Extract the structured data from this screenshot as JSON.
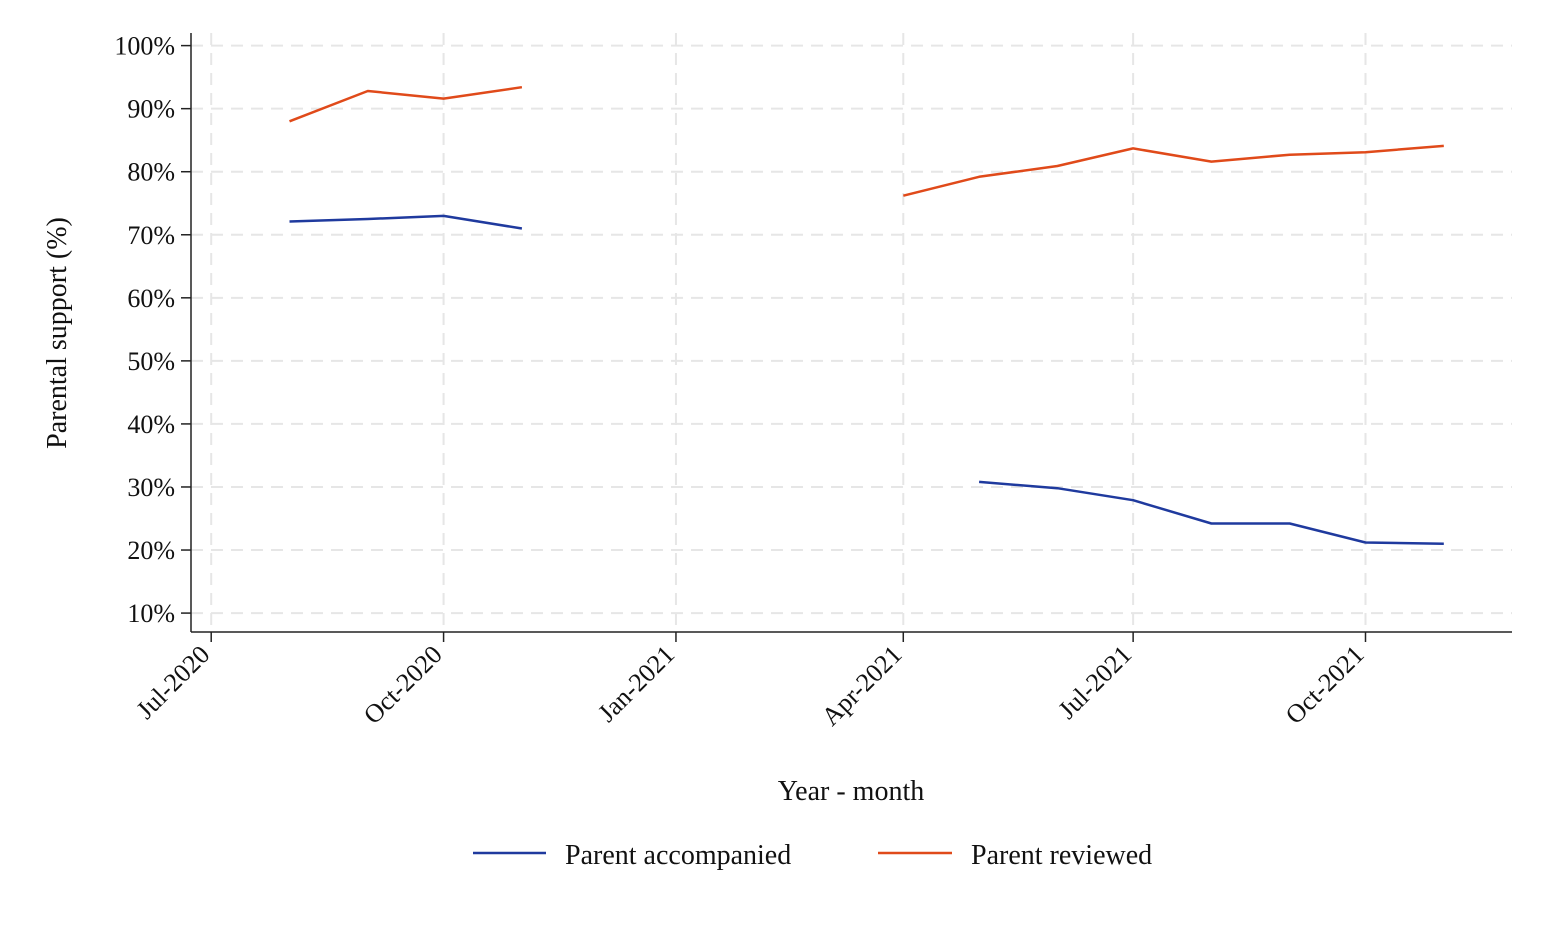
{
  "chart_data": {
    "type": "line",
    "title": "",
    "xlabel": "Year - month",
    "ylabel": "Parental support (%)",
    "x_axis": {
      "ticks": [
        "2020-07",
        "2020-10",
        "2021-01",
        "2021-04",
        "2021-07",
        "2021-10"
      ],
      "tick_labels": [
        "Jul-2020",
        "Oct-2020",
        "Jan-2021",
        "Apr-2021",
        "Jul-2021",
        "Oct-2021"
      ],
      "range": [
        "2020-06-23",
        "2021-11-28"
      ]
    },
    "y_axis": {
      "ticks": [
        10,
        20,
        30,
        40,
        50,
        60,
        70,
        80,
        90,
        100
      ],
      "tick_labels": [
        "10%",
        "20%",
        "30%",
        "40%",
        "50%",
        "60%",
        "70%",
        "80%",
        "90%",
        "100%"
      ],
      "range": [
        7,
        102
      ]
    },
    "grid": true,
    "legend_position": "bottom",
    "series": [
      {
        "name": "Parent accompanied",
        "color": "#1f3a9e",
        "segments": [
          [
            {
              "x": "2020-08",
              "y": 72.1
            },
            {
              "x": "2020-09",
              "y": 72.5
            },
            {
              "x": "2020-10",
              "y": 73.0
            },
            {
              "x": "2020-11",
              "y": 71.0
            }
          ],
          [
            {
              "x": "2021-05",
              "y": 30.8
            },
            {
              "x": "2021-06",
              "y": 29.8
            },
            {
              "x": "2021-07",
              "y": 27.9
            },
            {
              "x": "2021-08",
              "y": 24.2
            },
            {
              "x": "2021-09",
              "y": 24.2
            },
            {
              "x": "2021-10",
              "y": 21.2
            },
            {
              "x": "2021-11",
              "y": 21.0
            }
          ]
        ]
      },
      {
        "name": "Parent reviewed",
        "color": "#e04a1a",
        "segments": [
          [
            {
              "x": "2020-08",
              "y": 88.0
            },
            {
              "x": "2020-09",
              "y": 92.8
            },
            {
              "x": "2020-10",
              "y": 91.6
            },
            {
              "x": "2020-11",
              "y": 93.4
            }
          ],
          [
            {
              "x": "2021-04",
              "y": 76.2
            },
            {
              "x": "2021-05",
              "y": 79.2
            },
            {
              "x": "2021-06",
              "y": 80.9
            },
            {
              "x": "2021-07",
              "y": 83.7
            },
            {
              "x": "2021-08",
              "y": 81.6
            },
            {
              "x": "2021-09",
              "y": 82.7
            },
            {
              "x": "2021-10",
              "y": 83.1
            },
            {
              "x": "2021-11",
              "y": 84.1
            }
          ]
        ]
      }
    ]
  }
}
